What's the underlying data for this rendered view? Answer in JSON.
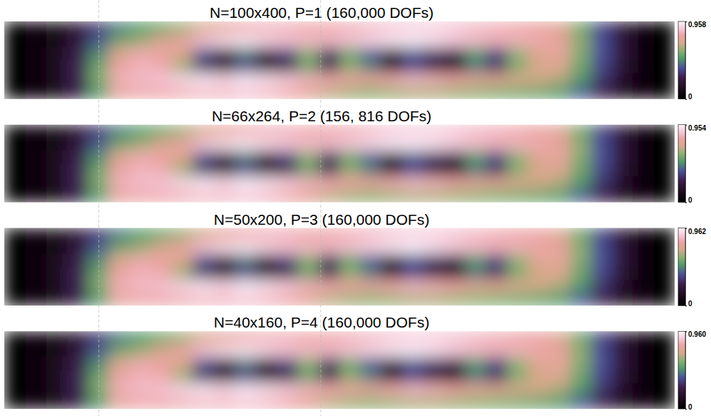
{
  "chart_data": [
    {
      "type": "heatmap",
      "title": "N=100x400, P=1 (160,000 DOFs)",
      "tick_labels": false,
      "colorbar_range": [
        0,
        0.958
      ],
      "colorbar_ticks": [
        0,
        0.958
      ],
      "cells": [
        [
          0.01,
          0.03,
          0.08,
          0.18,
          0.32,
          0.45,
          0.5,
          0.55,
          0.62,
          0.7,
          0.76,
          0.8,
          0.82,
          0.82,
          0.8,
          0.8,
          0.82,
          0.84,
          0.86,
          0.88,
          0.88,
          0.86,
          0.84,
          0.82,
          0.8,
          0.78,
          0.72,
          0.55,
          0.35,
          0.18,
          0.06,
          0.02
        ],
        [
          0.01,
          0.04,
          0.1,
          0.22,
          0.4,
          0.55,
          0.62,
          0.7,
          0.78,
          0.86,
          0.92,
          0.94,
          0.9,
          0.86,
          0.84,
          0.84,
          0.86,
          0.9,
          0.94,
          0.95,
          0.92,
          0.88,
          0.84,
          0.82,
          0.82,
          0.8,
          0.76,
          0.6,
          0.38,
          0.2,
          0.07,
          0.02
        ],
        [
          0.01,
          0.04,
          0.12,
          0.26,
          0.48,
          0.72,
          0.8,
          0.78,
          0.7,
          0.4,
          0.22,
          0.45,
          0.2,
          0.35,
          0.6,
          0.3,
          0.55,
          0.4,
          0.15,
          0.4,
          0.3,
          0.22,
          0.5,
          0.35,
          0.6,
          0.72,
          0.75,
          0.58,
          0.38,
          0.2,
          0.07,
          0.02
        ],
        [
          0.01,
          0.04,
          0.12,
          0.28,
          0.55,
          0.78,
          0.82,
          0.8,
          0.62,
          0.3,
          0.1,
          0.35,
          0.08,
          0.2,
          0.55,
          0.25,
          0.6,
          0.45,
          0.12,
          0.35,
          0.2,
          0.12,
          0.45,
          0.3,
          0.58,
          0.7,
          0.72,
          0.55,
          0.36,
          0.18,
          0.06,
          0.02
        ],
        [
          0.01,
          0.04,
          0.12,
          0.28,
          0.58,
          0.82,
          0.84,
          0.86,
          0.9,
          0.94,
          0.9,
          0.95,
          0.92,
          0.88,
          0.82,
          0.8,
          0.78,
          0.76,
          0.8,
          0.84,
          0.82,
          0.78,
          0.74,
          0.72,
          0.7,
          0.68,
          0.64,
          0.5,
          0.32,
          0.16,
          0.06,
          0.02
        ],
        [
          0.01,
          0.03,
          0.1,
          0.25,
          0.5,
          0.76,
          0.8,
          0.8,
          0.82,
          0.84,
          0.84,
          0.86,
          0.84,
          0.8,
          0.74,
          0.66,
          0.62,
          0.6,
          0.62,
          0.64,
          0.64,
          0.62,
          0.6,
          0.58,
          0.56,
          0.54,
          0.5,
          0.4,
          0.26,
          0.12,
          0.04,
          0.01
        ]
      ]
    },
    {
      "type": "heatmap",
      "title": "N=66x264, P=2 (156, 816 DOFs)",
      "tick_labels": false,
      "colorbar_range": [
        0,
        0.954
      ],
      "colorbar_ticks": [
        0,
        0.954
      ],
      "cells": [
        [
          0.01,
          0.03,
          0.08,
          0.18,
          0.32,
          0.45,
          0.5,
          0.55,
          0.62,
          0.7,
          0.76,
          0.8,
          0.82,
          0.82,
          0.8,
          0.8,
          0.82,
          0.84,
          0.86,
          0.88,
          0.88,
          0.86,
          0.84,
          0.82,
          0.8,
          0.78,
          0.72,
          0.55,
          0.35,
          0.18,
          0.06,
          0.02
        ],
        [
          0.01,
          0.04,
          0.1,
          0.22,
          0.4,
          0.55,
          0.62,
          0.7,
          0.78,
          0.86,
          0.92,
          0.94,
          0.9,
          0.86,
          0.84,
          0.84,
          0.86,
          0.9,
          0.94,
          0.94,
          0.92,
          0.88,
          0.84,
          0.82,
          0.82,
          0.8,
          0.76,
          0.6,
          0.38,
          0.2,
          0.07,
          0.02
        ],
        [
          0.01,
          0.04,
          0.12,
          0.26,
          0.48,
          0.72,
          0.8,
          0.78,
          0.7,
          0.4,
          0.22,
          0.45,
          0.2,
          0.35,
          0.6,
          0.3,
          0.55,
          0.4,
          0.15,
          0.4,
          0.3,
          0.22,
          0.5,
          0.35,
          0.6,
          0.72,
          0.75,
          0.58,
          0.38,
          0.2,
          0.07,
          0.02
        ],
        [
          0.01,
          0.04,
          0.12,
          0.28,
          0.55,
          0.78,
          0.82,
          0.8,
          0.62,
          0.3,
          0.1,
          0.35,
          0.1,
          0.2,
          0.55,
          0.25,
          0.6,
          0.45,
          0.12,
          0.35,
          0.2,
          0.12,
          0.45,
          0.3,
          0.58,
          0.7,
          0.72,
          0.55,
          0.36,
          0.18,
          0.06,
          0.02
        ],
        [
          0.01,
          0.04,
          0.12,
          0.28,
          0.58,
          0.82,
          0.84,
          0.86,
          0.9,
          0.94,
          0.9,
          0.95,
          0.92,
          0.88,
          0.82,
          0.8,
          0.78,
          0.76,
          0.8,
          0.84,
          0.82,
          0.78,
          0.74,
          0.72,
          0.7,
          0.68,
          0.64,
          0.5,
          0.32,
          0.16,
          0.06,
          0.02
        ],
        [
          0.01,
          0.03,
          0.1,
          0.25,
          0.5,
          0.76,
          0.8,
          0.8,
          0.82,
          0.84,
          0.84,
          0.86,
          0.84,
          0.8,
          0.74,
          0.66,
          0.62,
          0.6,
          0.62,
          0.64,
          0.64,
          0.62,
          0.6,
          0.58,
          0.56,
          0.54,
          0.5,
          0.4,
          0.26,
          0.12,
          0.04,
          0.01
        ]
      ]
    },
    {
      "type": "heatmap",
      "title": "N=50x200, P=3 (160,000 DOFs)",
      "tick_labels": false,
      "colorbar_range": [
        0,
        0.962
      ],
      "colorbar_ticks": [
        0,
        0.962
      ],
      "cells": [
        [
          0.01,
          0.03,
          0.08,
          0.18,
          0.32,
          0.45,
          0.5,
          0.55,
          0.62,
          0.7,
          0.76,
          0.8,
          0.82,
          0.82,
          0.8,
          0.8,
          0.82,
          0.84,
          0.86,
          0.88,
          0.88,
          0.86,
          0.84,
          0.82,
          0.8,
          0.78,
          0.72,
          0.55,
          0.35,
          0.18,
          0.06,
          0.02
        ],
        [
          0.01,
          0.04,
          0.1,
          0.22,
          0.4,
          0.55,
          0.62,
          0.7,
          0.78,
          0.86,
          0.92,
          0.94,
          0.9,
          0.86,
          0.84,
          0.84,
          0.86,
          0.9,
          0.94,
          0.96,
          0.92,
          0.88,
          0.84,
          0.82,
          0.82,
          0.8,
          0.76,
          0.6,
          0.38,
          0.2,
          0.07,
          0.02
        ],
        [
          0.01,
          0.04,
          0.12,
          0.26,
          0.48,
          0.72,
          0.8,
          0.78,
          0.7,
          0.4,
          0.22,
          0.45,
          0.2,
          0.35,
          0.6,
          0.3,
          0.55,
          0.4,
          0.15,
          0.4,
          0.3,
          0.22,
          0.5,
          0.35,
          0.6,
          0.72,
          0.75,
          0.58,
          0.38,
          0.2,
          0.07,
          0.02
        ],
        [
          0.01,
          0.04,
          0.12,
          0.28,
          0.55,
          0.78,
          0.82,
          0.8,
          0.62,
          0.3,
          0.1,
          0.35,
          0.08,
          0.2,
          0.55,
          0.25,
          0.6,
          0.45,
          0.12,
          0.35,
          0.2,
          0.12,
          0.45,
          0.3,
          0.58,
          0.7,
          0.72,
          0.55,
          0.36,
          0.18,
          0.06,
          0.02
        ],
        [
          0.01,
          0.04,
          0.12,
          0.28,
          0.58,
          0.82,
          0.84,
          0.86,
          0.9,
          0.94,
          0.9,
          0.96,
          0.92,
          0.88,
          0.82,
          0.8,
          0.78,
          0.76,
          0.8,
          0.84,
          0.82,
          0.78,
          0.74,
          0.72,
          0.7,
          0.68,
          0.64,
          0.5,
          0.32,
          0.16,
          0.06,
          0.02
        ],
        [
          0.01,
          0.03,
          0.1,
          0.25,
          0.5,
          0.76,
          0.8,
          0.8,
          0.82,
          0.84,
          0.84,
          0.86,
          0.84,
          0.8,
          0.74,
          0.66,
          0.62,
          0.6,
          0.62,
          0.64,
          0.64,
          0.62,
          0.6,
          0.58,
          0.56,
          0.54,
          0.5,
          0.4,
          0.26,
          0.12,
          0.04,
          0.01
        ]
      ]
    },
    {
      "type": "heatmap",
      "title": "N=40x160, P=4 (160,000 DOFs)",
      "tick_labels": false,
      "colorbar_range": [
        0,
        0.96
      ],
      "colorbar_ticks": [
        0,
        {
          "value": 0.96,
          "label": "0.960"
        }
      ],
      "cells": [
        [
          0.01,
          0.03,
          0.08,
          0.18,
          0.32,
          0.45,
          0.5,
          0.55,
          0.62,
          0.7,
          0.76,
          0.8,
          0.82,
          0.82,
          0.8,
          0.8,
          0.82,
          0.84,
          0.86,
          0.88,
          0.88,
          0.86,
          0.84,
          0.82,
          0.8,
          0.78,
          0.72,
          0.55,
          0.35,
          0.18,
          0.06,
          0.02
        ],
        [
          0.01,
          0.04,
          0.1,
          0.22,
          0.4,
          0.55,
          0.62,
          0.7,
          0.78,
          0.86,
          0.92,
          0.94,
          0.9,
          0.86,
          0.84,
          0.84,
          0.86,
          0.9,
          0.94,
          0.95,
          0.92,
          0.88,
          0.84,
          0.82,
          0.82,
          0.8,
          0.76,
          0.6,
          0.38,
          0.2,
          0.07,
          0.02
        ],
        [
          0.01,
          0.04,
          0.12,
          0.26,
          0.48,
          0.72,
          0.8,
          0.78,
          0.7,
          0.4,
          0.22,
          0.45,
          0.2,
          0.35,
          0.6,
          0.3,
          0.55,
          0.4,
          0.17,
          0.4,
          0.3,
          0.22,
          0.5,
          0.35,
          0.6,
          0.72,
          0.75,
          0.58,
          0.38,
          0.2,
          0.07,
          0.02
        ],
        [
          0.01,
          0.04,
          0.12,
          0.28,
          0.55,
          0.78,
          0.82,
          0.8,
          0.62,
          0.3,
          0.1,
          0.35,
          0.08,
          0.2,
          0.55,
          0.25,
          0.6,
          0.45,
          0.12,
          0.35,
          0.2,
          0.12,
          0.45,
          0.3,
          0.58,
          0.7,
          0.72,
          0.55,
          0.36,
          0.18,
          0.06,
          0.02
        ],
        [
          0.01,
          0.04,
          0.12,
          0.28,
          0.58,
          0.82,
          0.84,
          0.86,
          0.9,
          0.94,
          0.9,
          0.95,
          0.92,
          0.88,
          0.82,
          0.8,
          0.78,
          0.76,
          0.8,
          0.84,
          0.82,
          0.78,
          0.74,
          0.72,
          0.7,
          0.68,
          0.64,
          0.5,
          0.32,
          0.16,
          0.06,
          0.02
        ],
        [
          0.01,
          0.03,
          0.1,
          0.25,
          0.5,
          0.76,
          0.8,
          0.8,
          0.82,
          0.84,
          0.84,
          0.86,
          0.84,
          0.8,
          0.74,
          0.66,
          0.62,
          0.6,
          0.62,
          0.64,
          0.64,
          0.62,
          0.6,
          0.58,
          0.56,
          0.54,
          0.5,
          0.4,
          0.26,
          0.12,
          0.04,
          0.01
        ]
      ]
    }
  ]
}
